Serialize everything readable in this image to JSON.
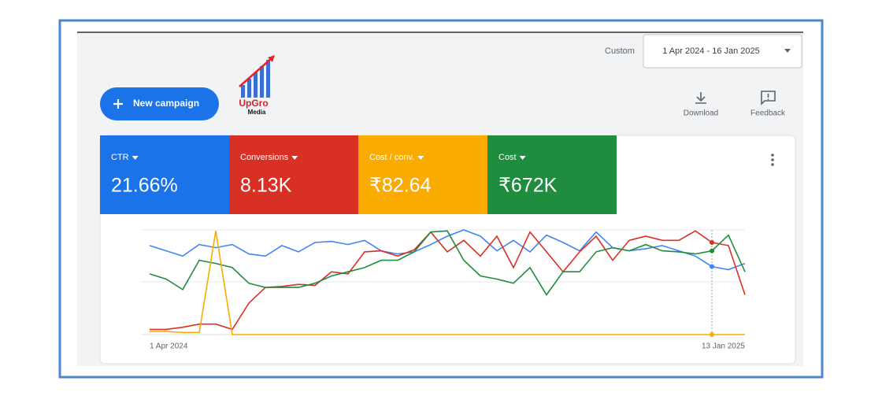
{
  "header": {
    "date_range_label": "Custom",
    "date_range": "1 Apr 2024 - 16 Jan 2025",
    "new_campaign": "New campaign",
    "logo": {
      "line1": "UpGro",
      "line2": "Media"
    },
    "actions": [
      "Download",
      "Feedback"
    ]
  },
  "metrics": [
    {
      "label": "CTR",
      "value": "21.66%",
      "color": "#1a73e8"
    },
    {
      "label": "Conversions",
      "value": "8.13K",
      "color": "#d93025"
    },
    {
      "label": "Cost / conv.",
      "value": "₹82.64",
      "color": "#f9ab00"
    },
    {
      "label": "Cost",
      "value": "₹672K",
      "color": "#1e8e3e"
    }
  ],
  "chart_data": {
    "type": "line",
    "categories": [
      "1 Apr 2024",
      null,
      null,
      null,
      null,
      null,
      null,
      null,
      null,
      null,
      null,
      null,
      null,
      null,
      null,
      null,
      null,
      null,
      null,
      null,
      null,
      null,
      null,
      null,
      null,
      null,
      null,
      null,
      null,
      null,
      null,
      null,
      null,
      null,
      "13 Jan 2025",
      null,
      null
    ],
    "ylim": [
      0,
      100
    ],
    "series": [
      {
        "color": "#4285f4",
        "values": [
          85,
          80,
          75,
          86,
          83,
          86,
          77,
          75,
          85,
          79,
          88,
          89,
          86,
          90,
          80,
          77,
          79,
          86,
          94,
          100,
          94,
          80,
          90,
          79,
          95,
          88,
          80,
          98,
          83,
          80,
          82,
          85,
          80,
          75,
          65,
          62,
          68
        ]
      },
      {
        "color": "#d93025",
        "values": [
          5,
          5,
          7,
          10,
          10,
          5,
          30,
          45,
          46,
          48,
          47,
          60,
          58,
          79,
          80,
          75,
          81,
          98,
          79,
          90,
          75,
          94,
          64,
          98,
          79,
          60,
          79,
          94,
          71,
          90,
          94,
          90,
          90,
          99,
          88,
          85,
          38
        ]
      },
      {
        "color": "#1e8e3e",
        "values": [
          58,
          53,
          43,
          71,
          68,
          64,
          49,
          45,
          45,
          45,
          49,
          56,
          60,
          64,
          71,
          71,
          79,
          98,
          99,
          71,
          56,
          53,
          49,
          64,
          38,
          60,
          60,
          79,
          83,
          80,
          86,
          80,
          79,
          77,
          80,
          95,
          60
        ]
      },
      {
        "color": "#f9ab00",
        "values": [
          3,
          3,
          2,
          2,
          99,
          0,
          0,
          0,
          0,
          0,
          0,
          0,
          0,
          0,
          0,
          0,
          0,
          0,
          0,
          0,
          0,
          0,
          0,
          0,
          0,
          0,
          0,
          0,
          0,
          0,
          0,
          0,
          0,
          0,
          0,
          0,
          0
        ]
      }
    ]
  }
}
